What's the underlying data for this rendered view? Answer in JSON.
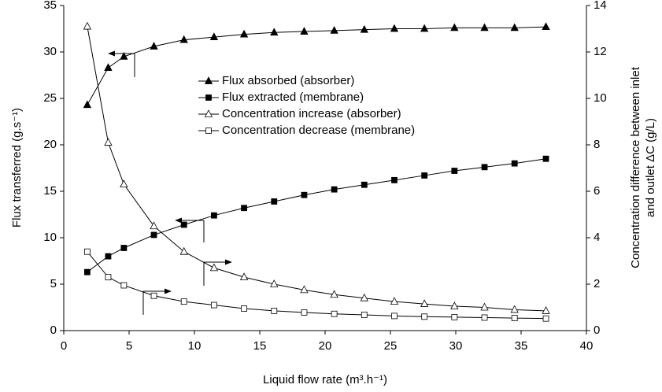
{
  "chart_data": {
    "type": "line",
    "xlabel": "Liquid flow rate (m³.h⁻¹)",
    "ylabel": "Flux transferred (g.s⁻¹)",
    "y2label": [
      "Concentration difference between inlet",
      "and outlet ΔC (g/L)"
    ],
    "xlim": [
      0,
      40
    ],
    "xticks": [
      0,
      5,
      10,
      15,
      20,
      25,
      30,
      35,
      40
    ],
    "ylim": [
      0,
      35
    ],
    "yticks": [
      0,
      5,
      10,
      15,
      20,
      25,
      30,
      35
    ],
    "y2lim": [
      0,
      14
    ],
    "y2ticks": [
      0,
      2,
      4,
      6,
      8,
      10,
      12,
      14
    ],
    "grid": false,
    "x": [
      1.8,
      3.4,
      4.6,
      6.9,
      9.2,
      11.5,
      13.8,
      16.1,
      18.4,
      20.7,
      23,
      25.3,
      27.6,
      29.9,
      32.2,
      34.5,
      36.9
    ],
    "series": [
      {
        "name": "Flux absorbed (absorber)",
        "color": "#000000",
        "marker": "triangle",
        "filled": true,
        "values": [
          24.3,
          28.3,
          29.5,
          30.6,
          31.3,
          31.6,
          31.9,
          32.1,
          32.2,
          32.3,
          32.4,
          32.5,
          32.5,
          32.6,
          32.6,
          32.6,
          32.7
        ]
      },
      {
        "name": "Flux extracted (membrane)",
        "color": "#000000",
        "marker": "square",
        "filled": true,
        "values": [
          6.3,
          8.0,
          8.9,
          10.3,
          11.4,
          12.4,
          13.2,
          13.9,
          14.6,
          15.2,
          15.7,
          16.2,
          16.7,
          17.2,
          17.6,
          18.0,
          18.5
        ]
      },
      {
        "name": "Concentration increase (absorber)",
        "color": "#000000",
        "marker": "triangle",
        "filled": false,
        "axis": "y2",
        "values": [
          13.1,
          8.1,
          6.3,
          4.5,
          3.4,
          2.7,
          2.3,
          2.0,
          1.75,
          1.55,
          1.4,
          1.25,
          1.15,
          1.05,
          1.0,
          0.9,
          0.85
        ]
      },
      {
        "name": "Concentration decrease (membrane)",
        "color": "#000000",
        "marker": "square",
        "filled": false,
        "axis": "y2",
        "values": [
          3.4,
          2.3,
          1.95,
          1.5,
          1.25,
          1.1,
          0.95,
          0.85,
          0.78,
          0.72,
          0.68,
          0.63,
          0.6,
          0.58,
          0.56,
          0.54,
          0.52
        ]
      }
    ]
  }
}
